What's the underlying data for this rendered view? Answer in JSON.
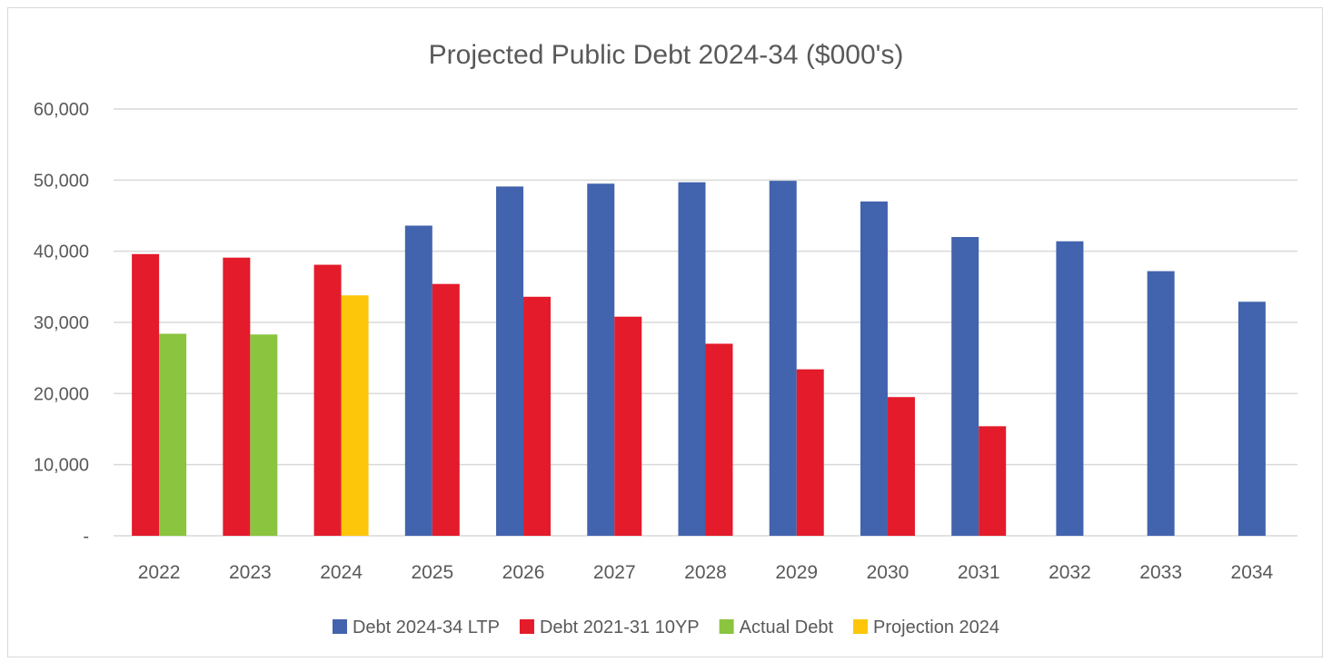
{
  "chart_data": {
    "type": "bar",
    "title": "Projected Public Debt 2024-34 ($000's)",
    "xlabel": "",
    "ylabel": "",
    "ylim": [
      0,
      60000
    ],
    "yticks": [
      0,
      10000,
      20000,
      30000,
      40000,
      50000,
      60000
    ],
    "ytick_labels": [
      "-",
      "10,000",
      "20,000",
      "30,000",
      "40,000",
      "50,000",
      "60,000"
    ],
    "grid": true,
    "legend_position": "bottom",
    "categories": [
      "2022",
      "2023",
      "2024",
      "2025",
      "2026",
      "2027",
      "2028",
      "2029",
      "2030",
      "2031",
      "2032",
      "2033",
      "2034"
    ],
    "series": [
      {
        "name": "Debt 2024-34 LTP",
        "color": "#4263ad",
        "values": [
          null,
          null,
          null,
          43600,
          49100,
          49500,
          49700,
          49900,
          47000,
          42000,
          41400,
          37200,
          32900
        ]
      },
      {
        "name": "Debt 2021-31 10YP",
        "color": "#e31b2b",
        "values": [
          39600,
          39100,
          38100,
          35400,
          33600,
          30800,
          27000,
          23400,
          19500,
          15400,
          null,
          null,
          null
        ]
      },
      {
        "name": "Actual Debt",
        "color": "#8bc43f",
        "values": [
          28400,
          28300,
          null,
          null,
          null,
          null,
          null,
          null,
          null,
          null,
          null,
          null,
          null
        ]
      },
      {
        "name": "Projection 2024",
        "color": "#fdc60a",
        "values": [
          null,
          null,
          33800,
          null,
          null,
          null,
          null,
          null,
          null,
          null,
          null,
          null,
          null
        ]
      }
    ]
  }
}
